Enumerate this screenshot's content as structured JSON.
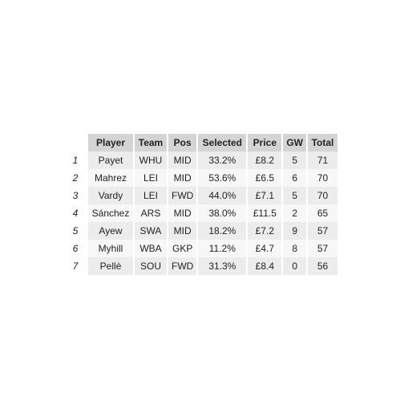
{
  "table": {
    "headers": [
      "Player",
      "Team",
      "Pos",
      "Selected",
      "Price",
      "GW",
      "Total"
    ],
    "rows": [
      {
        "rank": "1",
        "player": "Payet",
        "team": "WHU",
        "pos": "MID",
        "selected": "33.2%",
        "price": "£8.2",
        "gw": "5",
        "total": "71"
      },
      {
        "rank": "2",
        "player": "Mahrez",
        "team": "LEI",
        "pos": "MID",
        "selected": "53.6%",
        "price": "£6.5",
        "gw": "6",
        "total": "70"
      },
      {
        "rank": "3",
        "player": "Vardy",
        "team": "LEI",
        "pos": "FWD",
        "selected": "44.0%",
        "price": "£7.1",
        "gw": "5",
        "total": "70"
      },
      {
        "rank": "4",
        "player": "Sánchez",
        "team": "ARS",
        "pos": "MID",
        "selected": "38.0%",
        "price": "£11.5",
        "gw": "2",
        "total": "65"
      },
      {
        "rank": "5",
        "player": "Ayew",
        "team": "SWA",
        "pos": "MID",
        "selected": "18.2%",
        "price": "£7.2",
        "gw": "9",
        "total": "57"
      },
      {
        "rank": "6",
        "player": "Myhill",
        "team": "WBA",
        "pos": "GKP",
        "selected": "11.2%",
        "price": "£4.7",
        "gw": "8",
        "total": "57"
      },
      {
        "rank": "7",
        "player": "Pellè",
        "team": "SOU",
        "pos": "FWD",
        "selected": "31.3%",
        "price": "£8.4",
        "gw": "0",
        "total": "56"
      }
    ]
  }
}
